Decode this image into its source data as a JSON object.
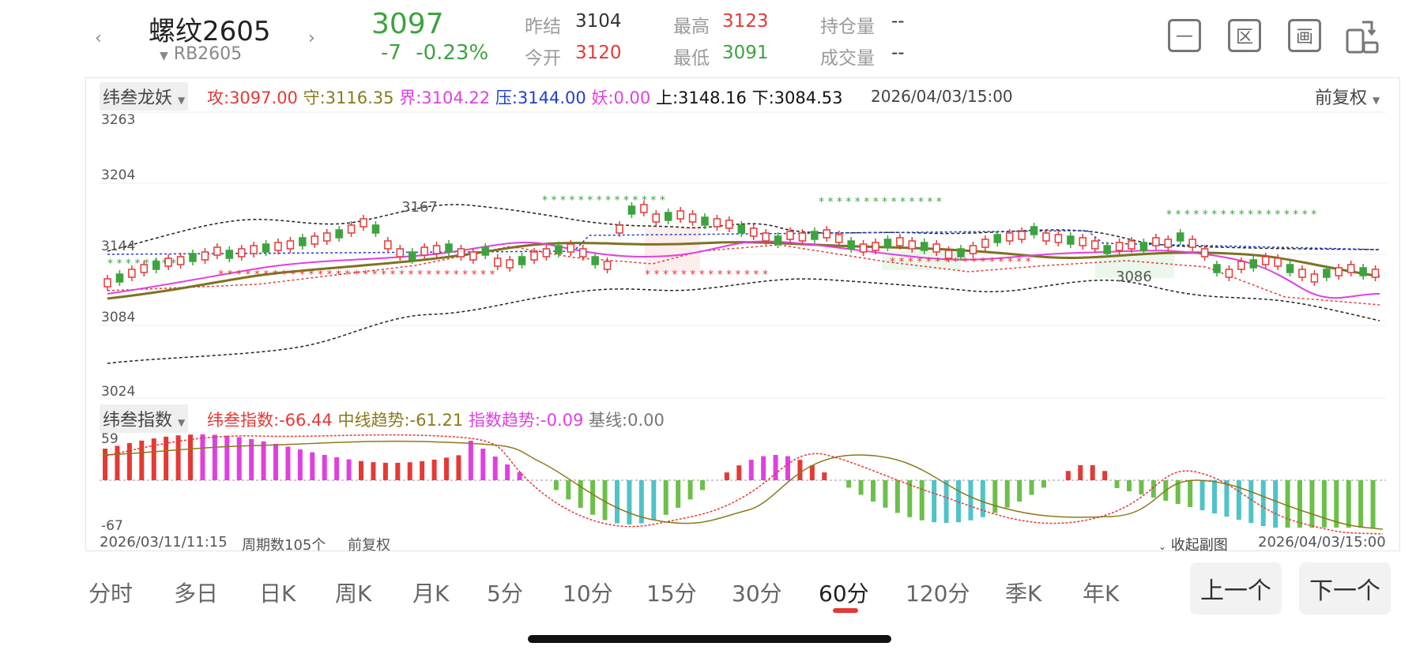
{
  "header": {
    "name": "螺纹2605",
    "code": "RB2605",
    "price": "3097",
    "change": "-7",
    "change_pct": "-0.23%",
    "quote": [
      {
        "label": "昨结",
        "value": "3104"
      },
      {
        "label": "今开",
        "value": "3120"
      },
      {
        "label": "最高",
        "value": "3123"
      },
      {
        "label": "最低",
        "value": "3091"
      },
      {
        "label": "持仓量",
        "value": "--"
      },
      {
        "label": "成交量",
        "value": "--"
      }
    ]
  },
  "main_chart": {
    "indicator_name": "纬叁龙妖",
    "indicator_values": [
      {
        "text": "攻:3097.00",
        "color": "#e53935"
      },
      {
        "text": "守:3116.35",
        "color": "#8a7a1a"
      },
      {
        "text": "界:3104.22",
        "color": "#e040e0"
      },
      {
        "text": "压:3144.00",
        "color": "#1f3fd8"
      },
      {
        "text": "妖:0.00",
        "color": "#e040e0"
      },
      {
        "text": "上:3148.16",
        "color": "#111111"
      },
      {
        "text": "下:3084.53",
        "color": "#111111"
      }
    ],
    "datetime": "2026/04/03/15:00",
    "adjust_label": "前复权",
    "y_labels": [
      "3263",
      "3204",
      "3144",
      "3084",
      "3024"
    ],
    "annot_high": "3167",
    "annot_low": "3086"
  },
  "sub_chart": {
    "indicator_name": "纬叁指数",
    "indicator_values": [
      {
        "text": "纬叁指数:-66.44",
        "color": "#e53935"
      },
      {
        "text": "中线趋势:-61.21",
        "color": "#8a7a1a"
      },
      {
        "text": "指数趋势:-0.09",
        "color": "#e040e0"
      },
      {
        "text": "基线:0.00",
        "color": "#777777"
      }
    ],
    "y_top": "59",
    "y_bottom": "-67"
  },
  "footer": {
    "start": "2026/03/11/11:15",
    "count": "周期数105个",
    "adjust": "前复权",
    "collapse": "收起副图",
    "end": "2026/04/03/15:00"
  },
  "periods": [
    "分时",
    "多日",
    "日K",
    "周K",
    "月K",
    "5分",
    "10分",
    "15分",
    "30分",
    "60分",
    "120分",
    "季K",
    "年K"
  ],
  "active_period": "60分",
  "buttons": {
    "prev": "上一个",
    "next": "下一个"
  },
  "colors": {
    "up": "#e53935",
    "down": "#3ea33e",
    "accent": "#e53935"
  }
}
